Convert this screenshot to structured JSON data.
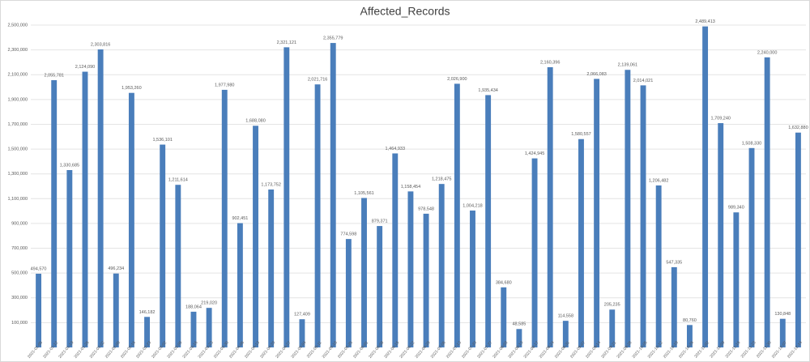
{
  "chart_data": {
    "type": "bar",
    "title": "Affected_Records",
    "categories": [
      "2021-01-05",
      "2021-01-12",
      "2021-01-19",
      "2021-01-26",
      "2021-02-02",
      "2021-02-09",
      "2021-02-16",
      "2021-02-23",
      "2021-03-02",
      "2021-03-09",
      "2021-03-16",
      "2021-03-23",
      "2021-03-30",
      "2021-04-06",
      "2021-04-13",
      "2021-04-20",
      "2021-04-27",
      "2021-05-04",
      "2021-05-11",
      "2021-05-18",
      "2021-05-25",
      "2021-06-01",
      "2021-06-08",
      "2021-06-15",
      "2021-06-22",
      "2021-06-29",
      "2021-07-06",
      "2021-07-13",
      "2021-07-20",
      "2021-07-27",
      "2021-08-03",
      "2021-08-10",
      "2021-08-17",
      "2021-08-24",
      "2021-08-31",
      "2021-09-07",
      "2021-09-14",
      "2021-09-21",
      "2021-09-28",
      "2021-10-05",
      "2021-10-12",
      "2021-10-19",
      "2021-10-26",
      "2021-11-02",
      "2021-11-09",
      "2021-11-16",
      "2021-11-23",
      "2021-11-30",
      "2021-12-07",
      "2021-12-14"
    ],
    "values": [
      494570,
      2055781,
      1330685,
      2124090,
      2303816,
      496234,
      1953260,
      146182,
      1536101,
      1211614,
      188064,
      219020,
      1977980,
      902451,
      1688080,
      1173752,
      2321121,
      127409,
      2021716,
      2355779,
      774598,
      1105561,
      879371,
      1464933,
      1158454,
      978548,
      1218475,
      2026900,
      1004218,
      1935434,
      384680,
      48585,
      1424945,
      2160396,
      114558,
      1580557,
      2066083,
      205235,
      2139061,
      2014021,
      1206482,
      547335,
      80760,
      2489413,
      1709240,
      989340,
      1508330,
      2240000,
      130848,
      1632880
    ],
    "value_labels": [
      "494,570",
      "2,055,781",
      "1,330,685",
      "2,124,090",
      "2,303,816",
      "496,234",
      "1,953,260",
      "146,182",
      "1,536,101",
      "1,211,614",
      "188,064",
      "219,020",
      "1,977,980",
      "902,451",
      "1,688,080",
      "1,173,752",
      "2,321,121",
      "127,409",
      "2,021,716",
      "2,355,779",
      "774,598",
      "1,105,561",
      "879,371",
      "1,464,933",
      "1,158,454",
      "978,548",
      "1,218,475",
      "2,026,900",
      "1,004,218",
      "1,935,434",
      "384,680",
      "48,585",
      "1,424,945",
      "2,160,396",
      "114,558",
      "1,580,557",
      "2,066,083",
      "205,235",
      "2,139,061",
      "2,014,021",
      "1,206,482",
      "547,335",
      "80,760",
      "2,489,413",
      "1,709,240",
      "989,340",
      "1,508,330",
      "2,240,000",
      "130,848",
      "1,632,880"
    ],
    "color": "#4a7ebb",
    "ylim": [
      -100000,
      2500000
    ],
    "yticks": [
      {
        "value": 100000,
        "label": "100,000"
      },
      {
        "value": 300000,
        "label": "300,000"
      },
      {
        "value": 500000,
        "label": "500,000"
      },
      {
        "value": 700000,
        "label": "700,000"
      },
      {
        "value": 900000,
        "label": "900,000"
      },
      {
        "value": 1100000,
        "label": "1,100,000"
      },
      {
        "value": 1300000,
        "label": "1,300,000"
      },
      {
        "value": 1500000,
        "label": "1,500,000"
      },
      {
        "value": 1700000,
        "label": "1,700,000"
      },
      {
        "value": 1900000,
        "label": "1,900,000"
      },
      {
        "value": 2100000,
        "label": "2,100,000"
      },
      {
        "value": 2300000,
        "label": "2,300,000"
      },
      {
        "value": 2500000,
        "label": "2,500,000"
      }
    ],
    "grid": true
  }
}
